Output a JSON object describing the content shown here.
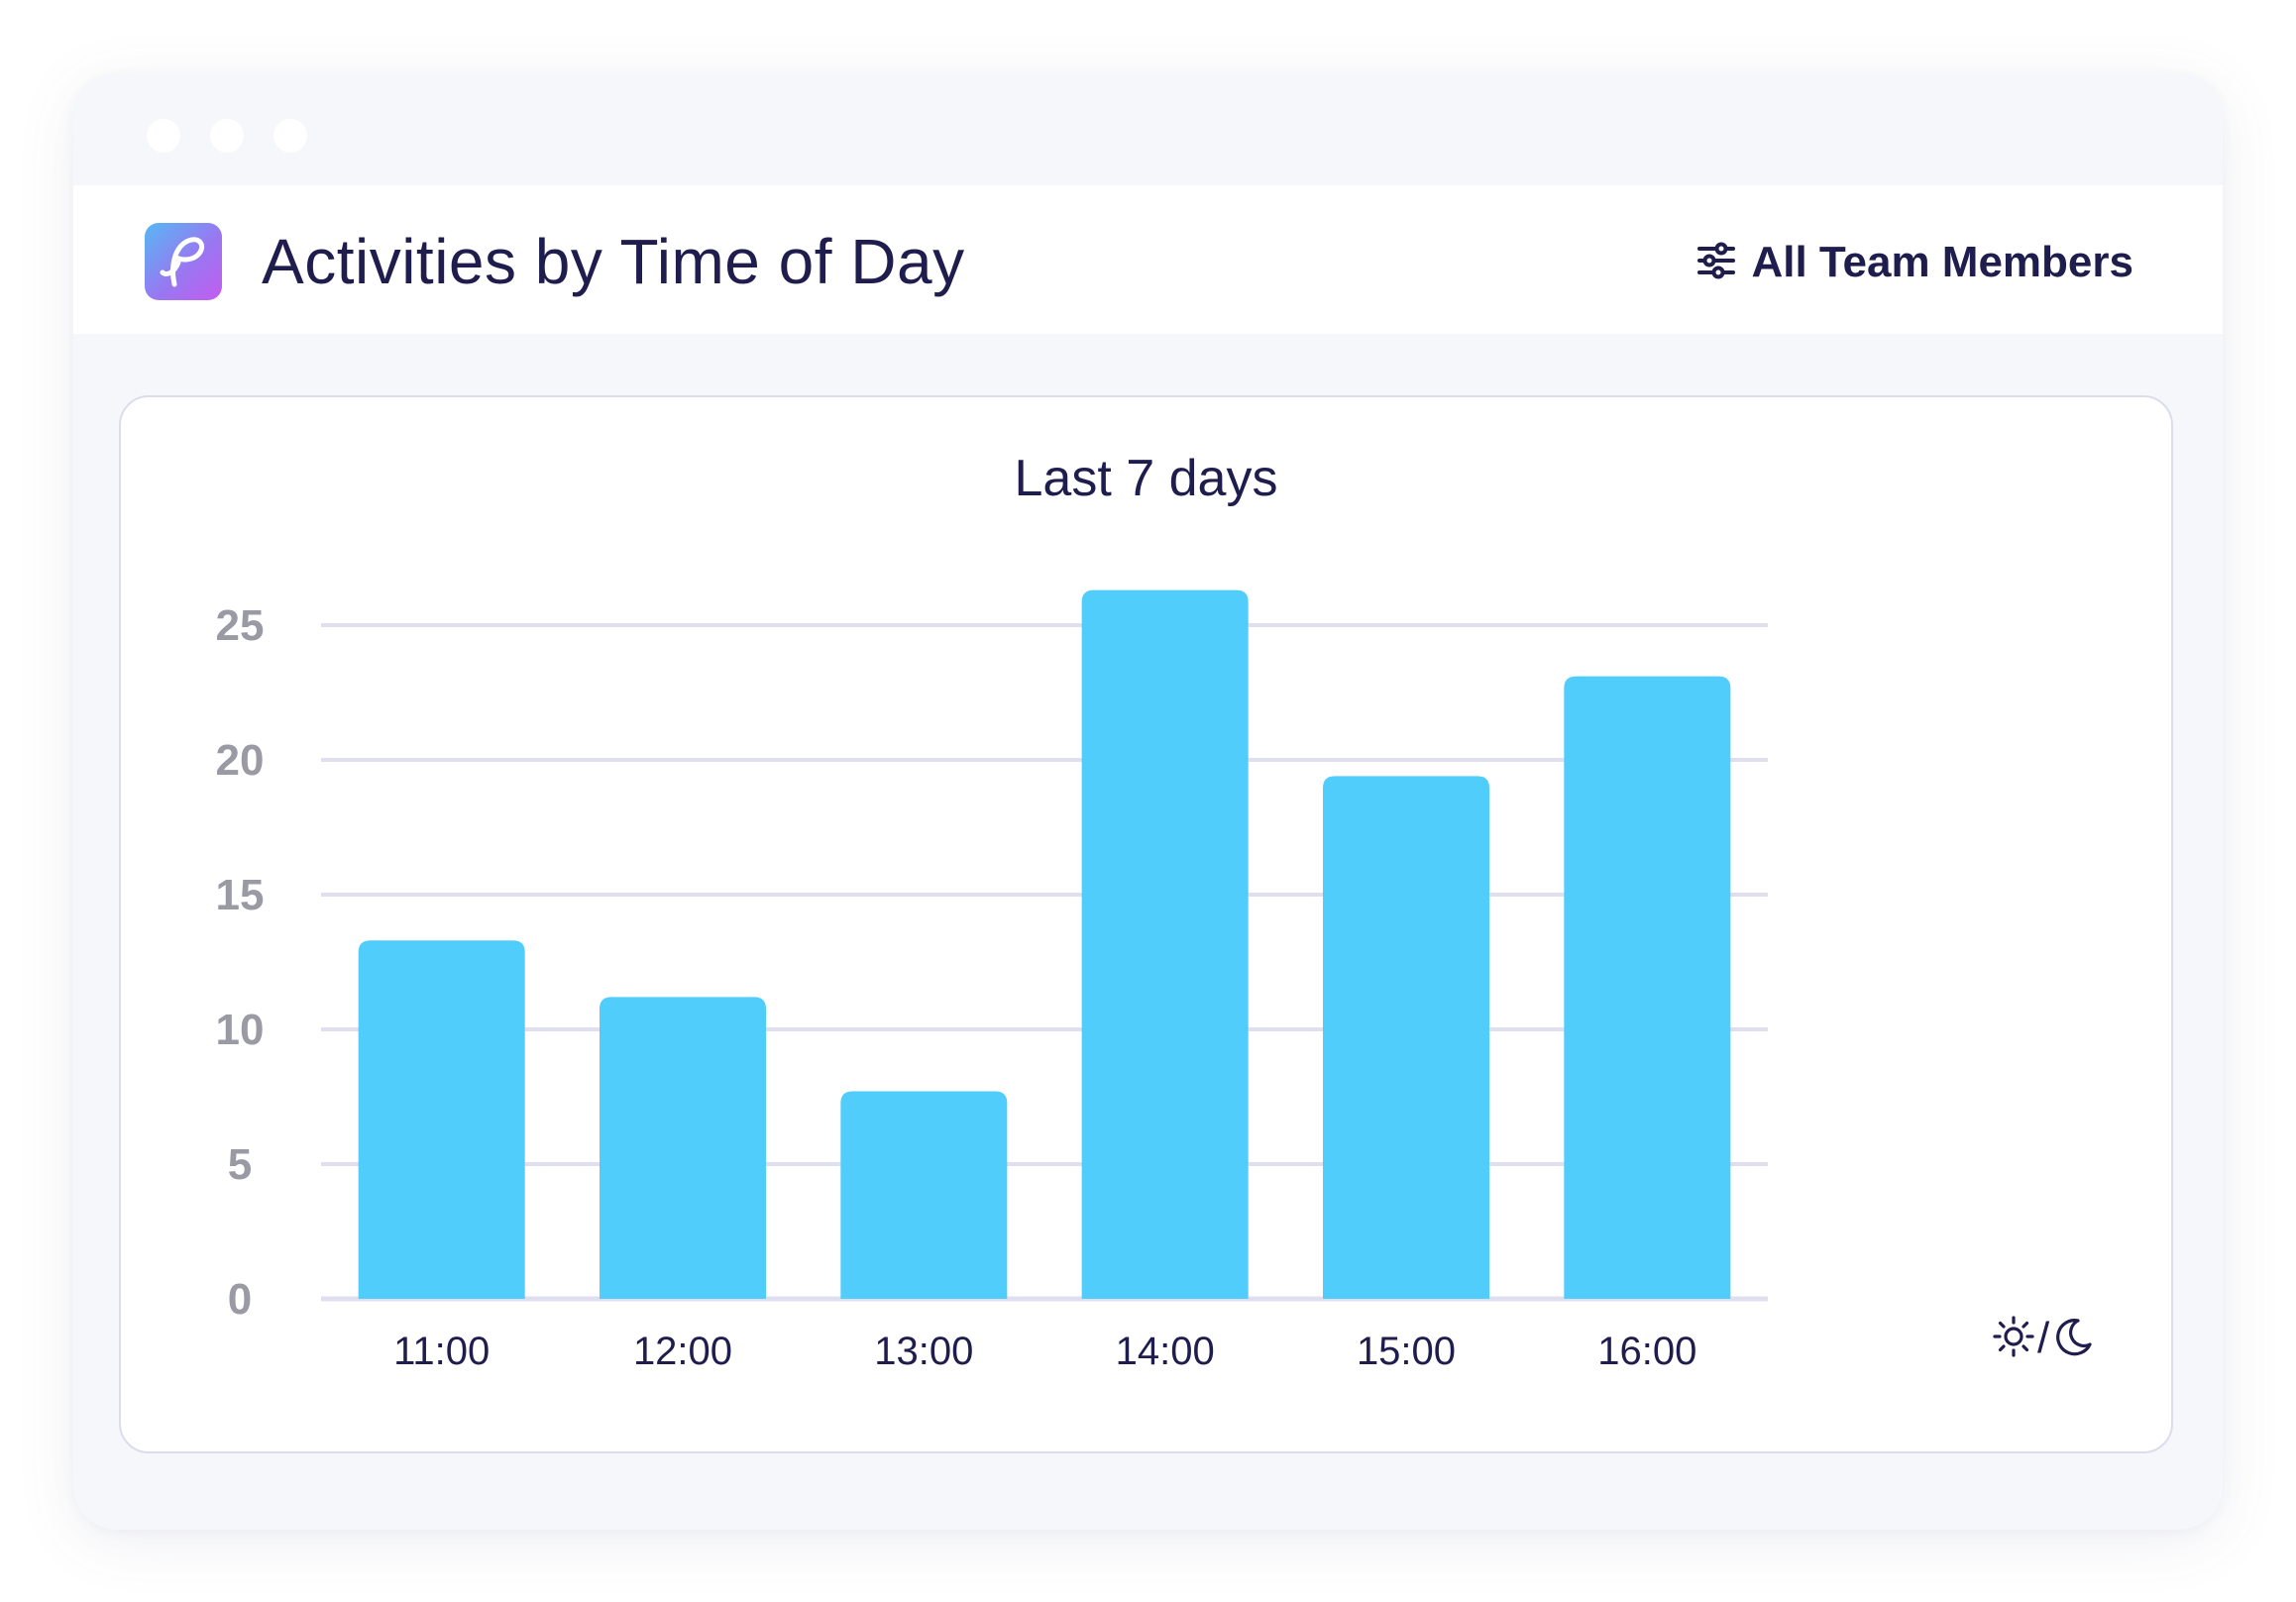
{
  "window": {
    "background": "#f6f7fb",
    "controls": [
      "window-dot",
      "window-dot",
      "window-dot"
    ]
  },
  "header": {
    "logo_icon": "app-logo-icon",
    "title": "Activities by Time of Day",
    "filter": {
      "icon": "sliders-icon",
      "label": "All Team Members"
    }
  },
  "chart_data": {
    "type": "bar",
    "title": "Last 7 days",
    "xlabel": "",
    "ylabel": "",
    "categories": [
      "11:00",
      "12:00",
      "13:00",
      "14:00",
      "15:00",
      "16:00"
    ],
    "values": [
      13.3,
      11.2,
      7.7,
      26.3,
      19.4,
      23.1
    ],
    "ylim": [
      0,
      25
    ],
    "yticks": [
      "0",
      "5",
      "10",
      "15",
      "20",
      "25"
    ],
    "bar_color": "#50cdfb",
    "grid_color": "#e0dff0",
    "grid": true,
    "legend": "none"
  },
  "theme_toggle": {
    "light_icon": "sun-icon",
    "separator": "/",
    "dark_icon": "moon-icon"
  }
}
